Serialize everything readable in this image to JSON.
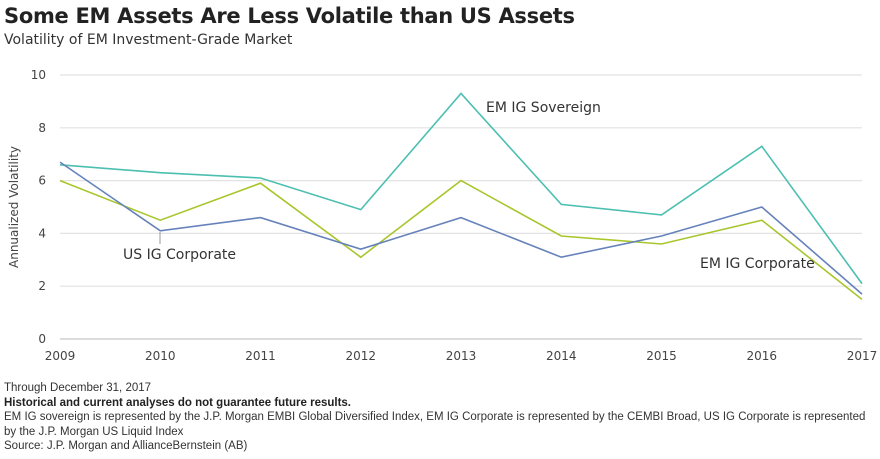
{
  "header": {
    "title": "Some EM Assets Are Less Volatile than US Assets",
    "subtitle": "Volatility of EM Investment-Grade Market"
  },
  "chart_data": {
    "type": "line",
    "title": "Some EM Assets Are Less Volatile than US Assets",
    "subtitle": "Volatility of EM Investment-Grade Market",
    "xlabel": "",
    "ylabel": "Annualized Volatility",
    "x": [
      "2009",
      "2010",
      "2011",
      "2012",
      "2013",
      "2014",
      "2015",
      "2016",
      "2017"
    ],
    "ylim": [
      0,
      10
    ],
    "yticks": [
      0,
      2,
      4,
      6,
      8,
      10
    ],
    "grid": true,
    "legend": "inline annotations",
    "series": [
      {
        "name": "EM IG Sovereign",
        "color": "#4bbfb0",
        "values": [
          6.6,
          6.3,
          6.1,
          4.9,
          9.3,
          5.1,
          4.7,
          7.3,
          2.1
        ]
      },
      {
        "name": "EM IG Corporate",
        "color": "#a8c62c",
        "values": [
          6.0,
          4.5,
          5.9,
          3.1,
          6.0,
          3.9,
          3.6,
          4.5,
          1.5
        ]
      },
      {
        "name": "US IG Corporate",
        "color": "#6682bb",
        "values": [
          6.7,
          4.1,
          4.6,
          3.4,
          4.6,
          3.1,
          3.9,
          5.0,
          1.7
        ]
      }
    ],
    "annotations": [
      {
        "text": "EM IG Sovereign",
        "series": "EM IG Sovereign",
        "near_x": "2013"
      },
      {
        "text": "US IG Corporate",
        "series": "US IG Corporate",
        "near_x": "2010",
        "leader_line": true
      },
      {
        "text": "EM IG Corporate",
        "series": "EM IG Corporate",
        "near_x": "2016"
      }
    ]
  },
  "footer": {
    "date_note": "Through December 31, 2017",
    "disclaimer": "Historical and current analyses do not guarantee future results.",
    "index_note": "EM IG sovereign is represented by the J.P. Morgan EMBI Global Diversified Index, EM IG Corporate is represented by the CEMBI Broad, US IG Corporate is represented by the J.P. Morgan US Liquid Index",
    "source": "Source: J.P. Morgan and AllianceBernstein (AB)"
  }
}
